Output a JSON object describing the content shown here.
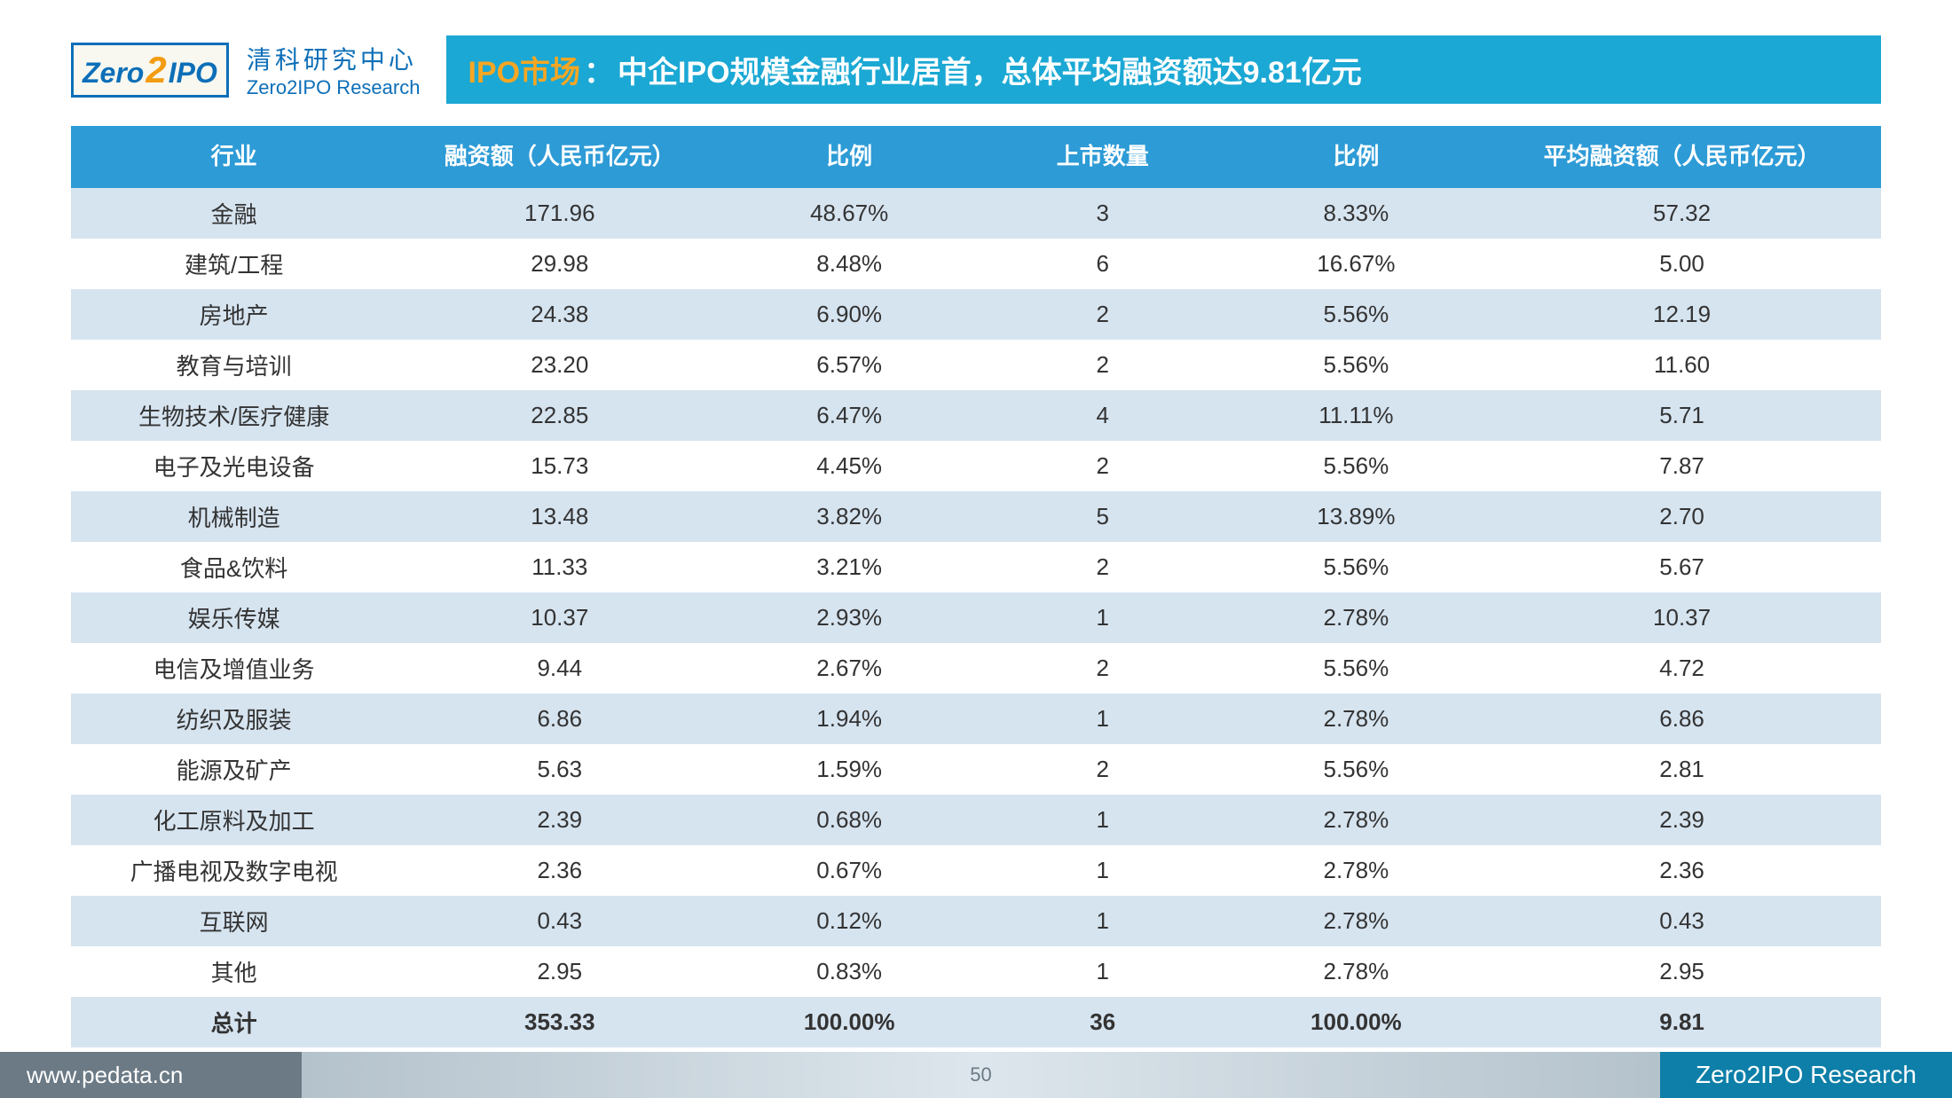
{
  "branding": {
    "logo_zero": "Zero",
    "logo_2": "2",
    "logo_ipo": "IPO",
    "name_cn": "清科研究中心",
    "name_en": "Zero2IPO Research"
  },
  "title": {
    "prefix": "IPO市场",
    "colon": "：",
    "main": "中企IPO规模金融行业居首，总体平均融资额达9.81亿元"
  },
  "table": {
    "type": "table",
    "header_bg": "#2d9bd6",
    "header_fg": "#ffffff",
    "row_even_bg": "#d6e4f0",
    "row_odd_bg": "#ffffff",
    "body_fontsize": 26,
    "header_fontsize": 26,
    "columns": [
      {
        "key": "industry",
        "label": "行业",
        "width_pct": 18
      },
      {
        "key": "amount",
        "label": "融资额（人民币亿元）",
        "width_pct": 18
      },
      {
        "key": "amount_ratio",
        "label": "比例",
        "width_pct": 14
      },
      {
        "key": "count",
        "label": "上市数量",
        "width_pct": 14
      },
      {
        "key": "count_ratio",
        "label": "比例",
        "width_pct": 14
      },
      {
        "key": "avg",
        "label": "平均融资额（人民币亿元）",
        "width_pct": 22
      }
    ],
    "rows": [
      [
        "金融",
        "171.96",
        "48.67%",
        "3",
        "8.33%",
        "57.32"
      ],
      [
        "建筑/工程",
        "29.98",
        "8.48%",
        "6",
        "16.67%",
        "5.00"
      ],
      [
        "房地产",
        "24.38",
        "6.90%",
        "2",
        "5.56%",
        "12.19"
      ],
      [
        "教育与培训",
        "23.20",
        "6.57%",
        "2",
        "5.56%",
        "11.60"
      ],
      [
        "生物技术/医疗健康",
        "22.85",
        "6.47%",
        "4",
        "11.11%",
        "5.71"
      ],
      [
        "电子及光电设备",
        "15.73",
        "4.45%",
        "2",
        "5.56%",
        "7.87"
      ],
      [
        "机械制造",
        "13.48",
        "3.82%",
        "5",
        "13.89%",
        "2.70"
      ],
      [
        "食品&饮料",
        "11.33",
        "3.21%",
        "2",
        "5.56%",
        "5.67"
      ],
      [
        "娱乐传媒",
        "10.37",
        "2.93%",
        "1",
        "2.78%",
        "10.37"
      ],
      [
        "电信及增值业务",
        "9.44",
        "2.67%",
        "2",
        "5.56%",
        "4.72"
      ],
      [
        "纺织及服装",
        "6.86",
        "1.94%",
        "1",
        "2.78%",
        "6.86"
      ],
      [
        "能源及矿产",
        "5.63",
        "1.59%",
        "2",
        "5.56%",
        "2.81"
      ],
      [
        "化工原料及加工",
        "2.39",
        "0.68%",
        "1",
        "2.78%",
        "2.39"
      ],
      [
        "广播电视及数字电视",
        "2.36",
        "0.67%",
        "1",
        "2.78%",
        "2.36"
      ],
      [
        "互联网",
        "0.43",
        "0.12%",
        "1",
        "2.78%",
        "0.43"
      ],
      [
        "其他",
        "2.95",
        "0.83%",
        "1",
        "2.78%",
        "2.95"
      ]
    ],
    "total_row": [
      "总计",
      "353.33",
      "100.00%",
      "36",
      "100.00%",
      "9.81"
    ]
  },
  "footer": {
    "url": "www.pedata.cn",
    "page": "50",
    "brand": "Zero2IPO Research",
    "left_bg": "#6b7a85",
    "right_bg": "#0d7fa8",
    "text_color": "#ffffff"
  },
  "colors": {
    "logo_border": "#0d6fb8",
    "logo_accent": "#f39c12",
    "title_banner_bg": "#1ba8d4",
    "title_prefix_color": "#f5a623",
    "title_main_color": "#ffffff"
  }
}
